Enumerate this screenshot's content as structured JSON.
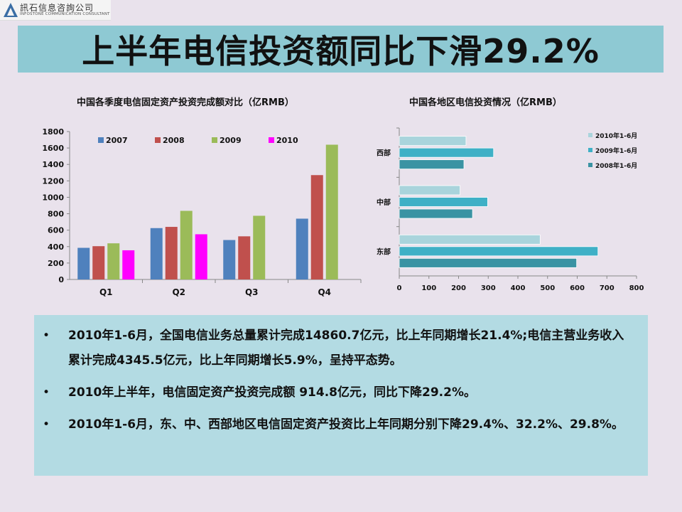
{
  "logo": {
    "name_cn": "訊石信息咨詢公司",
    "name_en": "INFOSTONE COMMUNICATION CONSULTANT"
  },
  "slide_title": "上半年电信投资额同比下滑29.2%",
  "chart_data": [
    {
      "type": "bar",
      "title": "中国各季度电信固定资产投资完成额对比（亿RMB）",
      "categories": [
        "Q1",
        "Q2",
        "Q3",
        "Q4"
      ],
      "series": [
        {
          "name": "2007",
          "color": "#4f81bd",
          "values": [
            385,
            625,
            480,
            740
          ]
        },
        {
          "name": "2008",
          "color": "#c0504d",
          "values": [
            405,
            640,
            525,
            1270
          ]
        },
        {
          "name": "2009",
          "color": "#9bbb59",
          "values": [
            440,
            835,
            775,
            1640
          ]
        },
        {
          "name": "2010",
          "color": "#ff00ff",
          "values": [
            355,
            550,
            null,
            null
          ]
        }
      ],
      "y_ticks": [
        "0",
        "200",
        "400",
        "600",
        "800",
        "1000",
        "1200",
        "1400",
        "1600",
        "1800"
      ],
      "ylim": [
        0,
        1800
      ],
      "legend": "top"
    },
    {
      "type": "bar",
      "orientation": "horizontal",
      "title": "中国各地区电信投资情况（亿RMB）",
      "categories": [
        "西部",
        "中部",
        "东部"
      ],
      "series": [
        {
          "name": "2010年1-6月",
          "color": "#a9d4dc",
          "values": [
            225,
            205,
            475
          ]
        },
        {
          "name": "2009年1-6月",
          "color": "#3fb0c6",
          "values": [
            318,
            298,
            670
          ]
        },
        {
          "name": "2008年1-6月",
          "color": "#3a93a3",
          "values": [
            218,
            247,
            598
          ]
        }
      ],
      "x_ticks": [
        "0",
        "100",
        "200",
        "300",
        "400",
        "500",
        "600",
        "700",
        "800"
      ],
      "xlim": [
        0,
        800
      ],
      "legend": "right"
    }
  ],
  "bullets": [
    "2010年1-6月，全国电信业务总量累计完成14860.7亿元，比上年同期增长21.4%;电信主营业务收入累计完成4345.5亿元，比上年同期增长5.9%，呈持平态势。",
    "2010年上半年，电信固定资产投资完成额 914.8亿元，同比下降29.2%。",
    "2010年1-6月，东、中、西部地区电信固定资产投资比上年同期分别下降29.4%、32.2%、29.8%。"
  ],
  "bullet_symbol": "•"
}
